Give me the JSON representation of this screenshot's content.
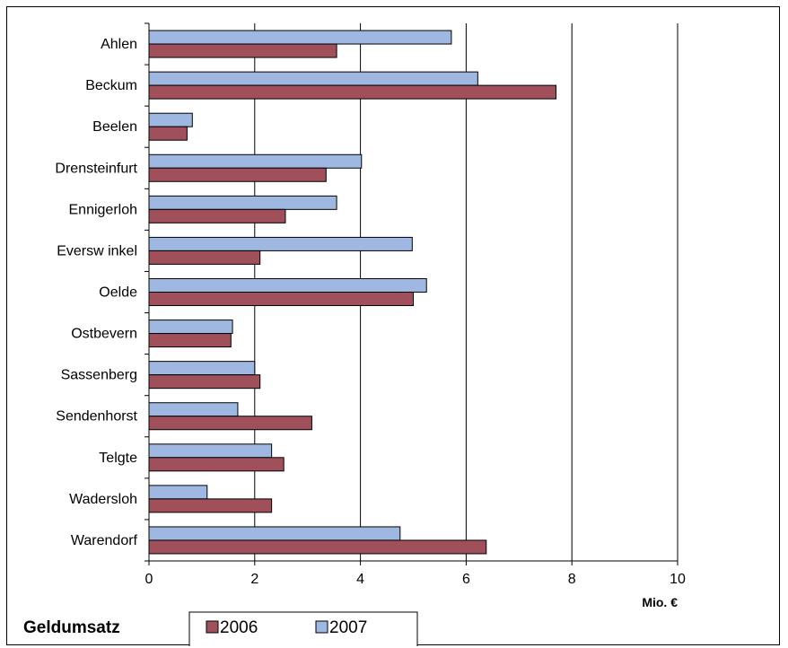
{
  "chart_data": {
    "type": "bar",
    "orientation": "horizontal",
    "title": "Geldumsatz",
    "xlabel": "Mio. €",
    "ylabel": "",
    "xlim": [
      0,
      10
    ],
    "xticks": [
      0,
      2,
      4,
      6,
      8,
      10
    ],
    "grid": true,
    "legend_position": "bottom",
    "categories": [
      "Ahlen",
      "Beckum",
      "Beelen",
      "Drensteinfurt",
      "Ennigerloh",
      "Eversw inkel",
      "Oelde",
      "Ostbevern",
      "Sassenberg",
      "Sendenhorst",
      "Telgte",
      "Wadersloh",
      "Warendorf"
    ],
    "series": [
      {
        "name": "2006",
        "color": "#A0505A",
        "values": [
          3.55,
          7.7,
          0.72,
          3.35,
          2.58,
          2.1,
          5.0,
          1.55,
          2.1,
          3.08,
          2.55,
          2.32,
          6.38
        ]
      },
      {
        "name": "2007",
        "color": "#9EB8E2",
        "values": [
          5.72,
          6.22,
          0.82,
          4.02,
          3.55,
          4.98,
          5.25,
          1.58,
          2.0,
          1.68,
          2.32,
          1.1,
          4.75
        ]
      }
    ]
  }
}
